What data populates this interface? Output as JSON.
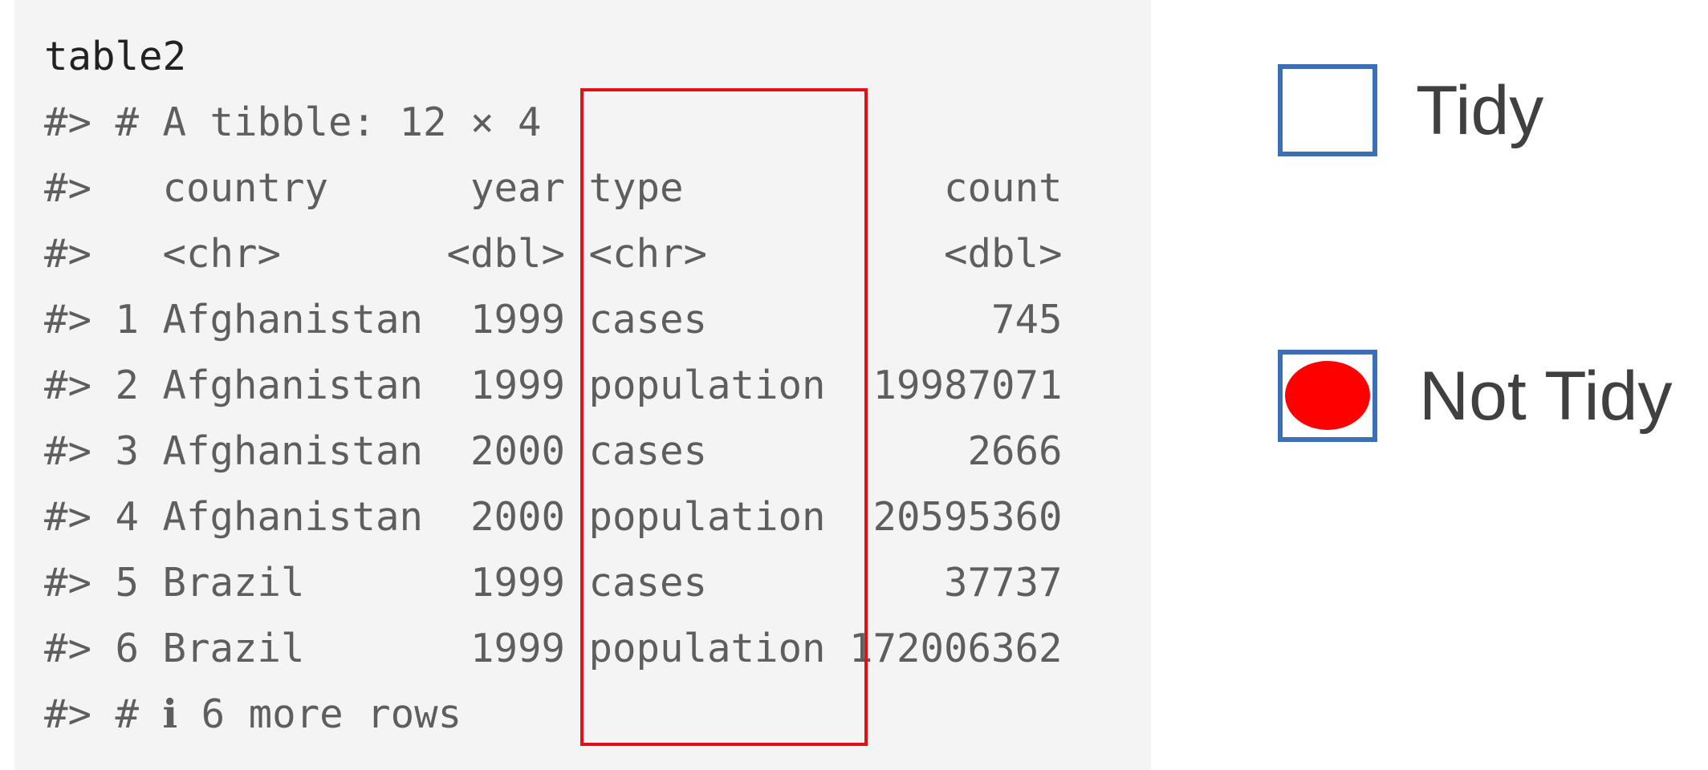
{
  "code_block": {
    "command": "table2",
    "lines": [
      "#> # A tibble: 12 × 4",
      "#>   country      year type           count",
      "#>   <chr>       <dbl> <chr>          <dbl>",
      "#> 1 Afghanistan  1999 cases            745",
      "#> 2 Afghanistan  1999 population  19987071",
      "#> 3 Afghanistan  2000 cases           2666",
      "#> 4 Afghanistan  2000 population  20595360",
      "#> 5 Brazil       1999 cases          37737",
      "#> 6 Brazil       1999 population 172006362",
      "#> # ℹ 6 more rows"
    ]
  },
  "highlight": {
    "column": "type",
    "color": "#e30f17"
  },
  "legend": {
    "items": [
      {
        "label": "Tidy",
        "selected": false,
        "box_color": "#3d6fb4"
      },
      {
        "label": "Not Tidy",
        "selected": true,
        "box_color": "#3d6fb4",
        "mark_color": "#ff0000"
      }
    ]
  }
}
